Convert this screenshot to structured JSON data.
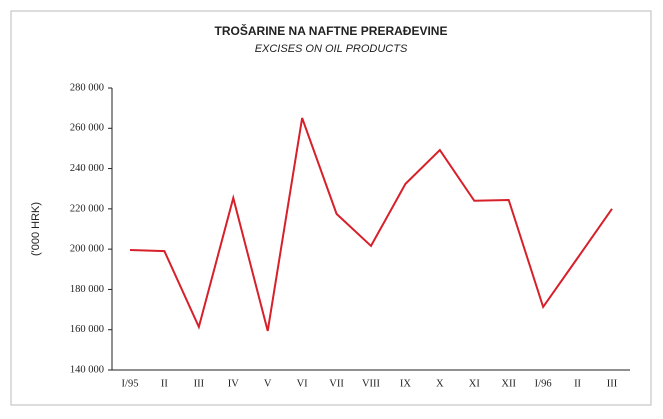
{
  "chart_data": {
    "type": "line",
    "title": "TROŠARINE NA NAFTNE PRERAĐEVINE",
    "subtitle": "EXCISES ON OIL PRODUCTS",
    "ylabel": "('000 HRK)",
    "categories": [
      "I/95",
      "II",
      "III",
      "IV",
      "V",
      "VI",
      "VII",
      "VIII",
      "IX",
      "X",
      "XI",
      "XII",
      "I/96",
      "II",
      "III"
    ],
    "series": [
      {
        "name": "Excises",
        "color": "#d7202a",
        "values": [
          199600,
          199000,
          161400,
          225400,
          159400,
          265100,
          217500,
          201600,
          232400,
          249200,
          224000,
          224400,
          171300,
          195600,
          220000
        ]
      }
    ],
    "ylim": [
      140000,
      280000
    ],
    "yticks": [
      {
        "value": 140000,
        "label": "140 000"
      },
      {
        "value": 160000,
        "label": "160 000"
      },
      {
        "value": 180000,
        "label": "180 000"
      },
      {
        "value": 200000,
        "label": "200 000"
      },
      {
        "value": 220000,
        "label": "220 000"
      },
      {
        "value": 240000,
        "label": "240 000"
      },
      {
        "value": 260000,
        "label": "260 000"
      },
      {
        "value": 280000,
        "label": "280 000"
      }
    ],
    "grid": false
  }
}
